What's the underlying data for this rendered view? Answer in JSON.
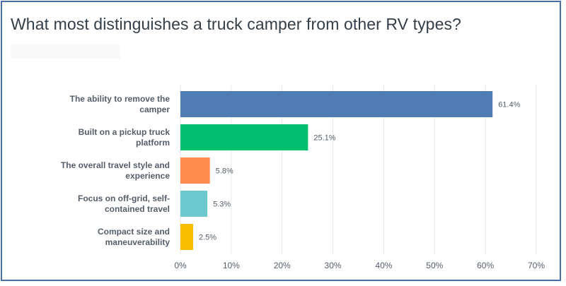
{
  "title": "What most distinguishes a truck camper from other RV types?",
  "chart_data": {
    "type": "bar",
    "orientation": "horizontal",
    "title": "What most distinguishes a truck camper from other RV types?",
    "categories": [
      [
        "The ability to remove the",
        "camper"
      ],
      [
        "Built on a pickup truck",
        "platform"
      ],
      [
        "The overall travel style and",
        "experience"
      ],
      [
        "Focus on off-grid, self-",
        "contained travel"
      ],
      [
        "Compact size and",
        "maneuverability"
      ]
    ],
    "values": [
      61.4,
      25.1,
      5.8,
      5.3,
      2.5
    ],
    "value_labels": [
      "61.4%",
      "25.1%",
      "5.8%",
      "5.3%",
      "2.5%"
    ],
    "colors": [
      "#507cb6",
      "#00bf6f",
      "#ff8b4f",
      "#6bc8cd",
      "#f9be00"
    ],
    "xlim": [
      0,
      70
    ],
    "xticks": [
      0,
      10,
      20,
      30,
      40,
      50,
      60,
      70
    ],
    "xtick_labels": [
      "0%",
      "10%",
      "20%",
      "30%",
      "40%",
      "50%",
      "60%",
      "70%"
    ],
    "grid": true,
    "xlabel": "",
    "ylabel": ""
  }
}
